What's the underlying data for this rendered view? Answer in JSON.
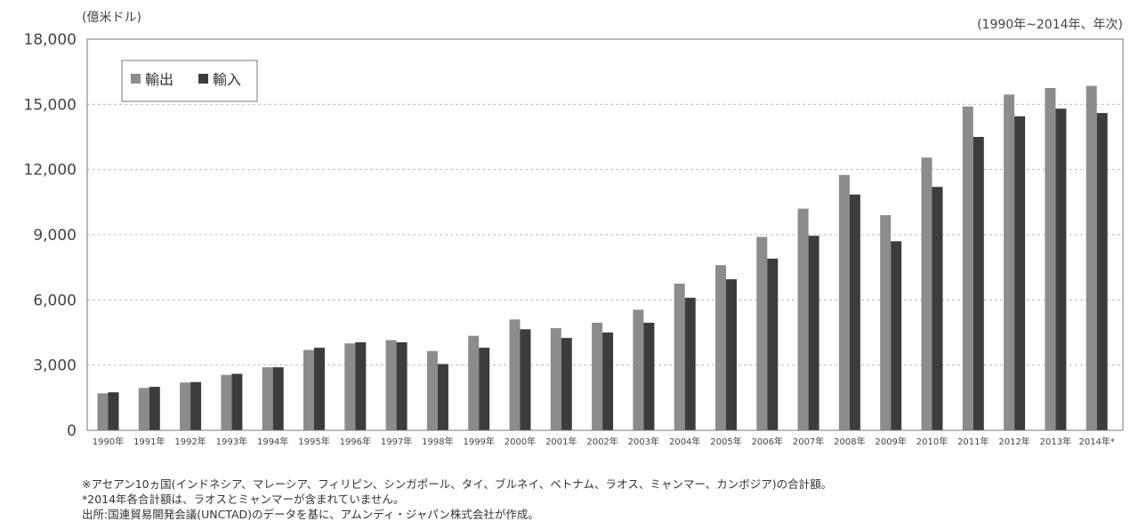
{
  "chart_data": {
    "type": "bar",
    "unit_label": "(億米ドル)",
    "period_label": "(1990年~2014年、年次)",
    "categories": [
      "1990年",
      "1991年",
      "1992年",
      "1993年",
      "1994年",
      "1995年",
      "1996年",
      "1997年",
      "1998年",
      "1999年",
      "2000年",
      "2001年",
      "2002年",
      "2003年",
      "2004年",
      "2005年",
      "2006年",
      "2007年",
      "2008年",
      "2009年",
      "2010年",
      "2011年",
      "2012年",
      "2013年",
      "2014年*"
    ],
    "series": [
      {
        "name": "輸出",
        "color": "#8c8c8c",
        "values": [
          1700,
          1950,
          2200,
          2550,
          2900,
          3700,
          4000,
          4150,
          3650,
          4350,
          5100,
          4700,
          4950,
          5550,
          6750,
          7600,
          8900,
          10200,
          11750,
          9900,
          12550,
          14900,
          15450,
          15750,
          15850
        ]
      },
      {
        "name": "輸入",
        "color": "#3c3c3c",
        "values": [
          1750,
          2000,
          2220,
          2600,
          2900,
          3800,
          4050,
          4050,
          3050,
          3800,
          4650,
          4250,
          4500,
          4950,
          6100,
          6950,
          7900,
          8950,
          10850,
          8700,
          11200,
          13500,
          14450,
          14800,
          14600
        ]
      }
    ],
    "ylim": [
      0,
      18000
    ],
    "yticks": [
      "0",
      "3,000",
      "6,000",
      "9,000",
      "12,000",
      "15,000",
      "18,000"
    ],
    "grid": true,
    "legend_position": "top-left"
  },
  "notes": [
    "※アセアン10ヵ国(インドネシア、マレーシア、フィリピン、シンガポール、タイ、ブルネイ、ベトナム、ラオス、ミャンマー、カンボジア)の合計額。",
    "*2014年各合計額は、ラオスとミャンマーが含まれていません。",
    "出所:国連貿易開発会議(UNCTAD)のデータを基に、アムンディ・ジャパン株式会社が作成。"
  ]
}
